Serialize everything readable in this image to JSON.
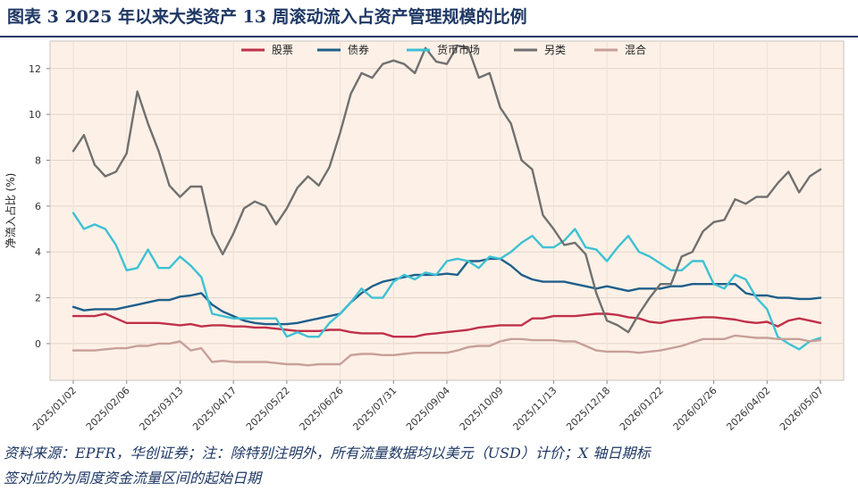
{
  "figure": {
    "title": "图表 3   2025 年以来大类资产 13 周滚动流入占资产管理规模的比例"
  },
  "footnote": {
    "line1": "资料来源：EPFR，华创证券；注：除特别注明外，所有流量数据均以美元（USD）计价；X 轴日期标",
    "line2": "签对应的为周度资金流量区间的起始日期"
  },
  "colors": {
    "plot_background": "#fdf1e7",
    "title": "#1f3864"
  },
  "chart_data": {
    "type": "line",
    "xlabel": "",
    "ylabel": "净流入占比 (%)",
    "ylim": [
      -1.6,
      13.2
    ],
    "yticks": [
      0,
      2,
      4,
      6,
      8,
      10,
      12
    ],
    "grid": true,
    "legend_position": "top-center",
    "x_tick_labels": [
      "2025/01/02",
      "2025/02/06",
      "2025/03/13",
      "2025/04/17",
      "2025/05/22",
      "2025/06/26",
      "2025/07/31",
      "2025/09/04",
      "2025/10/09",
      "2025/11/13",
      "2025/12/18",
      "2026/01/22",
      "2026/02/26",
      "2026/04/02",
      "2026/05/07"
    ],
    "x": [
      "2025/01/02",
      "2025/01/09",
      "2025/01/16",
      "2025/01/23",
      "2025/01/30",
      "2025/02/06",
      "2025/02/13",
      "2025/02/20",
      "2025/02/27",
      "2025/03/06",
      "2025/03/13",
      "2025/03/20",
      "2025/03/27",
      "2025/04/03",
      "2025/04/10",
      "2025/04/17",
      "2025/04/24",
      "2025/05/01",
      "2025/05/08",
      "2025/05/15",
      "2025/05/22",
      "2025/05/29",
      "2025/06/05",
      "2025/06/12",
      "2025/06/19",
      "2025/06/26",
      "2025/07/03",
      "2025/07/10",
      "2025/07/17",
      "2025/07/24",
      "2025/07/31",
      "2025/08/07",
      "2025/08/14",
      "2025/08/21",
      "2025/08/28",
      "2025/09/04",
      "2025/09/11",
      "2025/09/18",
      "2025/09/25",
      "2025/10/02",
      "2025/10/09",
      "2025/10/16",
      "2025/10/23",
      "2025/10/30",
      "2025/11/06",
      "2025/11/13",
      "2025/11/20",
      "2025/11/27",
      "2025/12/04",
      "2025/12/11",
      "2025/12/18",
      "2025/12/25",
      "2026/01/01",
      "2026/01/08",
      "2026/01/15",
      "2026/01/22",
      "2026/01/29",
      "2026/02/05",
      "2026/02/12",
      "2026/02/19",
      "2026/02/26",
      "2026/03/05",
      "2026/03/12",
      "2026/03/19",
      "2026/03/26",
      "2026/04/02",
      "2026/04/09",
      "2026/04/16",
      "2026/04/23",
      "2026/04/30",
      "2026/05/07"
    ],
    "series": [
      {
        "name": "股票",
        "color": "#c0304a",
        "values": [
          1.2,
          1.2,
          1.2,
          1.3,
          1.1,
          0.9,
          0.9,
          0.9,
          0.9,
          0.85,
          0.8,
          0.85,
          0.75,
          0.8,
          0.8,
          0.75,
          0.75,
          0.7,
          0.7,
          0.65,
          0.6,
          0.55,
          0.55,
          0.55,
          0.6,
          0.6,
          0.5,
          0.45,
          0.45,
          0.45,
          0.3,
          0.3,
          0.3,
          0.4,
          0.45,
          0.5,
          0.55,
          0.6,
          0.7,
          0.75,
          0.8,
          0.8,
          0.8,
          1.1,
          1.1,
          1.2,
          1.2,
          1.2,
          1.25,
          1.3,
          1.3,
          1.25,
          1.15,
          1.1,
          0.95,
          0.9,
          1.0,
          1.05,
          1.1,
          1.15,
          1.15,
          1.1,
          1.05,
          0.95,
          0.9,
          0.95,
          0.75,
          1.0,
          1.1,
          1.0,
          0.9
        ]
      },
      {
        "name": "债券",
        "color": "#1f5f8b",
        "values": [
          1.6,
          1.45,
          1.5,
          1.5,
          1.5,
          1.6,
          1.7,
          1.8,
          1.9,
          1.9,
          2.05,
          2.1,
          2.2,
          1.7,
          1.4,
          1.2,
          1.0,
          0.9,
          0.85,
          0.85,
          0.85,
          0.9,
          1.0,
          1.1,
          1.2,
          1.3,
          1.8,
          2.2,
          2.5,
          2.7,
          2.8,
          2.9,
          3.0,
          3.0,
          3.0,
          3.05,
          3.0,
          3.6,
          3.6,
          3.7,
          3.7,
          3.4,
          3.0,
          2.8,
          2.7,
          2.7,
          2.7,
          2.6,
          2.5,
          2.4,
          2.5,
          2.4,
          2.3,
          2.4,
          2.4,
          2.4,
          2.5,
          2.5,
          2.6,
          2.6,
          2.6,
          2.6,
          2.6,
          2.2,
          2.1,
          2.1,
          2.0,
          2.0,
          1.95,
          1.95,
          2.0
        ]
      },
      {
        "name": "货币市场",
        "color": "#3ec1d3",
        "values": [
          5.7,
          5.0,
          5.2,
          5.0,
          4.3,
          3.2,
          3.3,
          4.1,
          3.3,
          3.3,
          3.8,
          3.4,
          2.9,
          1.3,
          1.2,
          1.1,
          1.1,
          1.1,
          1.1,
          1.1,
          0.3,
          0.5,
          0.3,
          0.3,
          0.9,
          1.3,
          1.8,
          2.4,
          2.0,
          2.0,
          2.7,
          3.0,
          2.8,
          3.1,
          3.0,
          3.6,
          3.7,
          3.6,
          3.3,
          3.8,
          3.7,
          4.0,
          4.4,
          4.7,
          4.2,
          4.2,
          4.5,
          5.0,
          4.2,
          4.1,
          3.6,
          4.2,
          4.7,
          4.0,
          3.8,
          3.5,
          3.2,
          3.2,
          3.6,
          3.6,
          2.6,
          2.4,
          3.0,
          2.8,
          2.0,
          1.5,
          0.3,
          0.0,
          -0.25,
          0.1,
          0.25
        ]
      },
      {
        "name": "另类",
        "color": "#707070",
        "values": [
          8.4,
          9.1,
          7.8,
          7.3,
          7.5,
          8.3,
          11.0,
          9.6,
          8.4,
          6.9,
          6.4,
          6.85,
          6.85,
          4.8,
          3.9,
          4.8,
          5.9,
          6.2,
          6.0,
          5.2,
          5.9,
          6.8,
          7.3,
          6.9,
          7.7,
          9.2,
          10.9,
          11.8,
          11.6,
          12.2,
          12.35,
          12.2,
          11.8,
          12.9,
          12.3,
          12.2,
          13.0,
          12.9,
          11.6,
          11.8,
          10.3,
          9.6,
          8.0,
          7.6,
          5.6,
          5.0,
          4.3,
          4.4,
          3.9,
          2.2,
          1.0,
          0.8,
          0.5,
          1.3,
          2.0,
          2.6,
          2.6,
          3.8,
          4.0,
          4.9,
          5.3,
          5.4,
          6.3,
          6.1,
          6.4,
          6.4,
          7.0,
          7.5,
          6.6,
          7.3,
          7.6
        ]
      },
      {
        "name": "混合",
        "color": "#c8a099",
        "values": [
          -0.3,
          -0.3,
          -0.3,
          -0.25,
          -0.2,
          -0.2,
          -0.1,
          -0.1,
          0.0,
          0.0,
          0.1,
          -0.3,
          -0.2,
          -0.8,
          -0.75,
          -0.8,
          -0.8,
          -0.8,
          -0.8,
          -0.85,
          -0.9,
          -0.9,
          -0.95,
          -0.9,
          -0.9,
          -0.9,
          -0.5,
          -0.45,
          -0.45,
          -0.5,
          -0.5,
          -0.45,
          -0.4,
          -0.4,
          -0.4,
          -0.4,
          -0.3,
          -0.15,
          -0.1,
          -0.1,
          0.1,
          0.2,
          0.2,
          0.15,
          0.15,
          0.15,
          0.1,
          0.1,
          -0.1,
          -0.3,
          -0.35,
          -0.35,
          -0.35,
          -0.4,
          -0.35,
          -0.3,
          -0.2,
          -0.1,
          0.05,
          0.2,
          0.2,
          0.2,
          0.35,
          0.3,
          0.25,
          0.25,
          0.2,
          0.2,
          0.2,
          0.1,
          0.15
        ]
      }
    ]
  }
}
